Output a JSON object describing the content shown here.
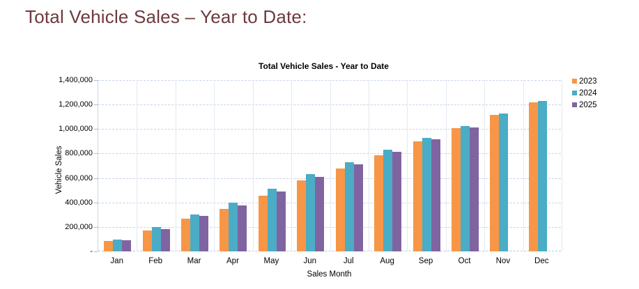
{
  "page": {
    "title": "Total Vehicle Sales – Year to Date:",
    "title_color": "#6D3A3F"
  },
  "chart_data": {
    "type": "bar",
    "title": "Total Vehicle Sales - Year to Date",
    "xlabel": "Sales Month",
    "ylabel": "Vehicle Sales",
    "ylim": [
      0,
      1400000
    ],
    "grid": true,
    "legend_position": "right-top",
    "y_ticks": [
      {
        "value": 0,
        "label": "-"
      },
      {
        "value": 200000,
        "label": "200,000"
      },
      {
        "value": 400000,
        "label": "400,000"
      },
      {
        "value": 600000,
        "label": "600,000"
      },
      {
        "value": 800000,
        "label": "800,000"
      },
      {
        "value": 1000000,
        "label": "1,000,000"
      },
      {
        "value": 1200000,
        "label": "1,200,000"
      },
      {
        "value": 1400000,
        "label": "1,400,000"
      }
    ],
    "categories": [
      "Jan",
      "Feb",
      "Mar",
      "Apr",
      "May",
      "Jun",
      "Jul",
      "Aug",
      "Sep",
      "Oct",
      "Nov",
      "Dec"
    ],
    "series": [
      {
        "name": "2023",
        "color": "#F79646",
        "values": [
          85000,
          170000,
          270000,
          350000,
          455000,
          580000,
          675000,
          788000,
          900000,
          1005000,
          1117000,
          1220000
        ]
      },
      {
        "name": "2024",
        "color": "#4BACC6",
        "values": [
          95000,
          197000,
          303000,
          400000,
          512000,
          633000,
          730000,
          833000,
          925000,
          1025000,
          1126000,
          1229000
        ]
      },
      {
        "name": "2025",
        "color": "#8064A2",
        "values": [
          90000,
          185000,
          291000,
          378000,
          488000,
          608000,
          710000,
          812000,
          915000,
          1012000,
          null,
          null
        ]
      }
    ]
  }
}
